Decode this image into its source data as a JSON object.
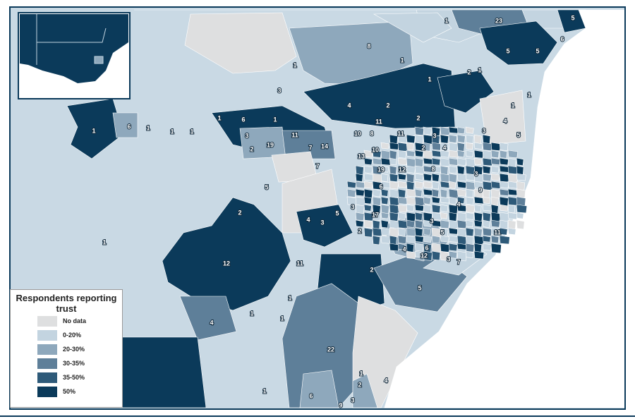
{
  "legend": {
    "title": "Respondents reporting trust",
    "items": [
      {
        "label": "No data",
        "color": "#dedfe0"
      },
      {
        "label": "0-20%",
        "color": "#c3d4e0"
      },
      {
        "label": "20-30%",
        "color": "#8ea8bc"
      },
      {
        "label": "30-35%",
        "color": "#5e7f99"
      },
      {
        "label": "35-50%",
        "color": "#2e5a79"
      },
      {
        "label": "50%",
        "color": "#0b3a5a"
      }
    ]
  },
  "labels": [
    23,
    5,
    6,
    1,
    8,
    1,
    5,
    5,
    2,
    1,
    1,
    2,
    4,
    2,
    1,
    3,
    6,
    1,
    1,
    1,
    6,
    1,
    1,
    1,
    3,
    11,
    19,
    2,
    7,
    14,
    7,
    5,
    11,
    11,
    10,
    8,
    13,
    10,
    19,
    12,
    2,
    4,
    3,
    5,
    2,
    17,
    1,
    12,
    11,
    4,
    1,
    1,
    1,
    22,
    5,
    2,
    4,
    12,
    6,
    11,
    4,
    5,
    3,
    1,
    1,
    3,
    9,
    4,
    3,
    2,
    8,
    6,
    3,
    4,
    2,
    1,
    3,
    1,
    6,
    9,
    7,
    3,
    5,
    3,
    4
  ]
}
